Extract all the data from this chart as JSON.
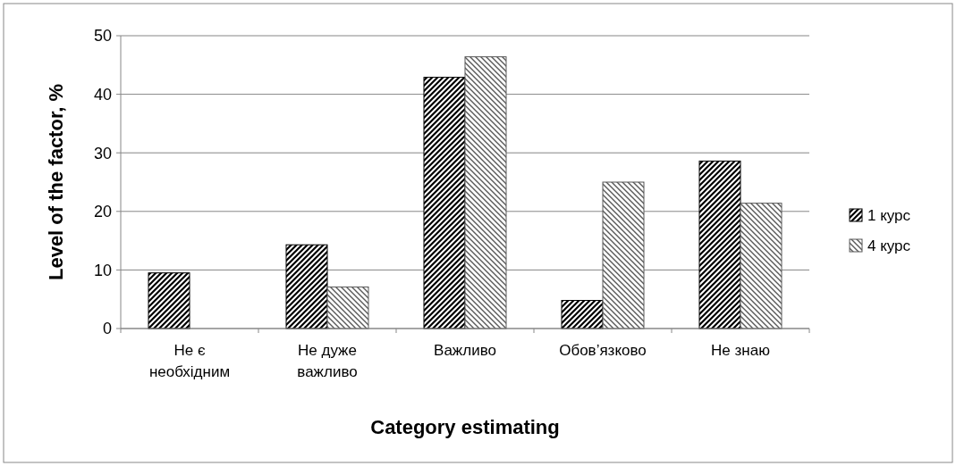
{
  "chart_data": {
    "type": "bar",
    "xlabel": "Category estimating",
    "ylabel": "Level of the factor, %",
    "categories": [
      "Не є необхідним",
      "Не дуже важливо",
      "Важливо",
      "Обов’язково",
      "Не знаю"
    ],
    "series": [
      {
        "name": "1 курс",
        "color": "#000000",
        "values": [
          9.5,
          14.3,
          42.9,
          4.8,
          28.6
        ]
      },
      {
        "name": "4 курс",
        "color": "#595959",
        "values": [
          0,
          7.1,
          46.4,
          25.0,
          21.4
        ]
      }
    ],
    "ylim": [
      0,
      50
    ],
    "yticks": [
      0,
      10,
      20,
      30,
      40,
      50
    ],
    "grid": "y",
    "legend": "right"
  }
}
